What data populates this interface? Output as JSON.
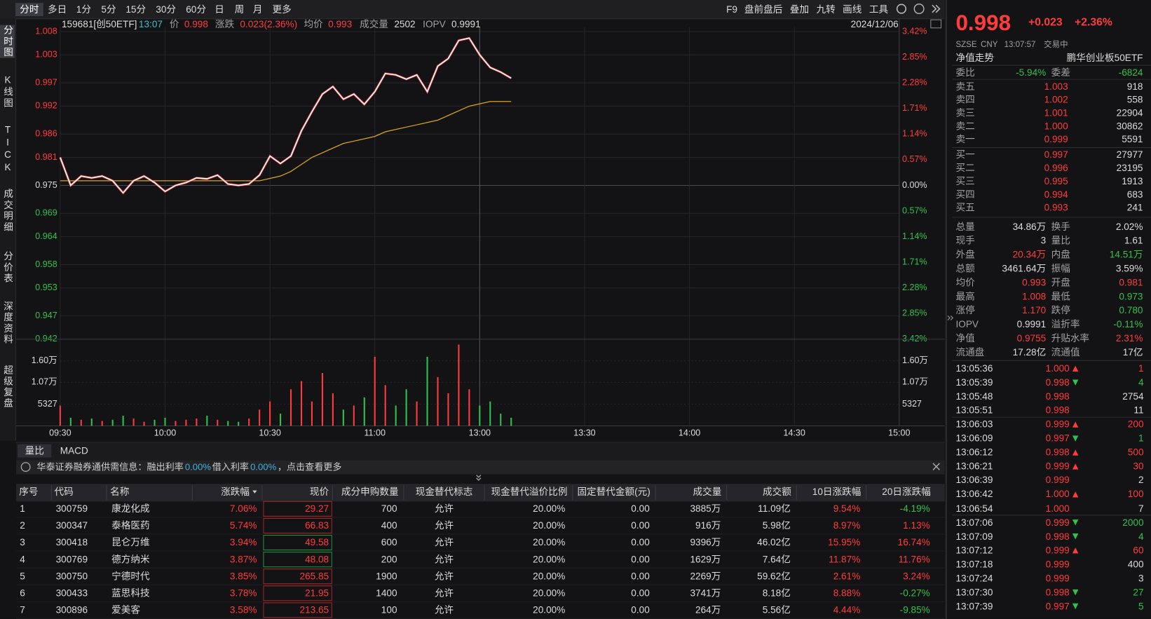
{
  "toolbar": {
    "tabs": [
      "分时",
      "多日",
      "1分",
      "5分",
      "15分",
      "30分",
      "60分",
      "日",
      "周",
      "月",
      "更多"
    ],
    "tools": [
      "F9",
      "盘前盘后",
      "叠加",
      "九转",
      "画线",
      "工具"
    ]
  },
  "side_tabs": [
    "分时图",
    "K线图",
    "TICK",
    "成交明细",
    "分价表",
    "深度资料",
    "超级复盘"
  ],
  "chart_data": {
    "type": "line",
    "info": [
      "159681[创50ETF]",
      "13:07",
      "价",
      "0.998",
      "涨跌",
      "0.023(2.36%)",
      "均价",
      "0.993",
      "成交量",
      "2502",
      "IOPV",
      "0.9991"
    ],
    "date": "2024/12/06",
    "xticks": [
      "09:30",
      "10:00",
      "10:30",
      "11:00",
      "13:00",
      "13:30",
      "14:00",
      "14:30",
      "15:00"
    ],
    "ylim": [
      0.942,
      1.008
    ],
    "yticks": [
      1.008,
      1.003,
      0.997,
      0.992,
      0.986,
      0.981,
      0.975,
      0.969,
      0.964,
      0.958,
      0.953,
      0.947,
      0.942
    ],
    "y2lim": [
      -3.42,
      3.42
    ],
    "y2ticks": [
      {
        "value": 3.42,
        "label": "3.42%"
      },
      {
        "value": 2.85,
        "label": "2.85%"
      },
      {
        "value": 2.28,
        "label": "2.28%"
      },
      {
        "value": 1.71,
        "label": "1.71%"
      },
      {
        "value": 1.14,
        "label": "1.14%"
      },
      {
        "value": 0.57,
        "label": "0.57%"
      },
      {
        "value": 0,
        "label": "0.00%"
      },
      {
        "value": -0.57,
        "label": "0.57%"
      },
      {
        "value": -1.14,
        "label": "1.14%"
      },
      {
        "value": -1.71,
        "label": "1.71%"
      },
      {
        "value": -2.28,
        "label": "2.28%"
      },
      {
        "value": -2.85,
        "label": "2.85%"
      },
      {
        "value": -3.42,
        "label": "3.42%"
      }
    ],
    "series": [
      {
        "color": "#ffffff",
        "values": [
          0.981,
          0.975,
          0.977,
          0.9766,
          0.977,
          0.976,
          0.9734,
          0.976,
          0.977,
          0.9756,
          0.9737,
          0.975,
          0.9756,
          0.9766,
          0.9764,
          0.9772,
          0.9753,
          0.975,
          0.9753,
          0.9772,
          0.9813,
          0.9797,
          0.9813,
          0.9867,
          0.9908,
          0.9946,
          0.9962,
          0.9935,
          0.9946,
          0.9924,
          0.9951,
          0.999,
          0.9987,
          0.9978,
          0.9987,
          0.9951,
          1.0006,
          1.0022,
          1.0061,
          1.0066,
          1.003,
          1.0003,
          0.9993,
          0.998
        ]
      },
      {
        "color": "#d9a520",
        "values": [
          0.976,
          0.976,
          0.976,
          0.976,
          0.976,
          0.976,
          0.976,
          0.976,
          0.976,
          0.976,
          0.976,
          0.976,
          0.976,
          0.976,
          0.976,
          0.976,
          0.976,
          0.976,
          0.976,
          0.976,
          0.9765,
          0.977,
          0.978,
          0.9795,
          0.981,
          0.982,
          0.983,
          0.984,
          0.9845,
          0.985,
          0.9855,
          0.9865,
          0.987,
          0.9875,
          0.988,
          0.9885,
          0.989,
          0.99,
          0.991,
          0.992,
          0.9925,
          0.993,
          0.993,
          0.993
        ]
      }
    ],
    "volume": {
      "ylim": [
        0,
        21308
      ],
      "yticks": [
        {
          "value": 16000,
          "label": "1.60万"
        },
        {
          "value": 10700,
          "label": "1.07万"
        },
        5327
      ],
      "values": [
        5000,
        2000,
        1500,
        1800,
        1200,
        1500,
        2500,
        1800,
        1000,
        1500,
        2000,
        1200,
        1500,
        1800,
        2500,
        1500,
        1200,
        1000,
        1800,
        4000,
        6000,
        3000,
        9000,
        11000,
        6000,
        13000,
        8000,
        4000,
        5000,
        7000,
        17000,
        10000,
        5000,
        9000,
        6000,
        17000,
        12000,
        8000,
        20000,
        9000,
        5000,
        6000,
        3000,
        2000
      ]
    },
    "up_color": "#ff3b3b",
    "down_color": "#2fc24b"
  },
  "tabs": [
    "量比",
    "MACD"
  ],
  "notice": [
    "华泰证券融券通供需信息：融出利率",
    "0.00%",
    "借入利率",
    "0.00%",
    "，点击查看更多"
  ],
  "table": {
    "headers": [
      "序号",
      "代码",
      "名称",
      "涨跌幅",
      "现价",
      "成分申购数量",
      "现金替代标志",
      "现金替代溢价比例",
      "固定替代金额(元)",
      "成交量",
      "成交额",
      "10日涨跌幅",
      "20日涨跌幅"
    ],
    "rows": [
      [
        "1",
        "300759",
        "康龙化成",
        "7.06%",
        "29.27",
        "700",
        "允许",
        "20.00%",
        "0.00",
        "3885万",
        "11.09亿",
        "9.54%",
        "-4.19%"
      ],
      [
        "2",
        "300347",
        "泰格医药",
        "5.74%",
        "66.83",
        "400",
        "允许",
        "20.00%",
        "0.00",
        "916万",
        "5.98亿",
        "8.97%",
        "1.13%"
      ],
      [
        "3",
        "300418",
        "昆仑万维",
        "3.94%",
        "49.58",
        "600",
        "允许",
        "20.00%",
        "0.00",
        "9396万",
        "46.02亿",
        "15.95%",
        "16.74%"
      ],
      [
        "4",
        "300769",
        "德方纳米",
        "3.87%",
        "48.08",
        "200",
        "允许",
        "20.00%",
        "0.00",
        "1629万",
        "7.64亿",
        "11.87%",
        "11.76%"
      ],
      [
        "5",
        "300750",
        "宁德时代",
        "3.85%",
        "265.85",
        "1900",
        "允许",
        "20.00%",
        "0.00",
        "2269万",
        "59.62亿",
        "2.61%",
        "3.24%"
      ],
      [
        "6",
        "300433",
        "蓝思科技",
        "3.78%",
        "21.95",
        "1400",
        "允许",
        "20.00%",
        "0.00",
        "3741万",
        "8.18亿",
        "8.88%",
        "-0.27%"
      ],
      [
        "7",
        "300896",
        "爱美客",
        "3.58%",
        "213.65",
        "100",
        "允许",
        "20.00%",
        "0.00",
        "264万",
        "5.56亿",
        "4.44%",
        "-9.85%"
      ]
    ]
  },
  "quote": {
    "price": "0.998",
    "change": "+0.023",
    "pct": "+2.36%",
    "meta": [
      "SZSE",
      "CNY",
      "13:07:57",
      "交易中"
    ],
    "nav_title": "净值走势",
    "fund_name": "鹏华创业板50ETF",
    "weibi": [
      "委比",
      "-5.94%",
      "委差",
      "-6824"
    ],
    "asks": [
      [
        "卖五",
        "1.003",
        "918"
      ],
      [
        "卖四",
        "1.002",
        "558"
      ],
      [
        "卖三",
        "1.001",
        "22904"
      ],
      [
        "卖二",
        "1.000",
        "30862"
      ],
      [
        "卖一",
        "0.999",
        "5591"
      ]
    ],
    "bids": [
      [
        "买一",
        "0.997",
        "27977"
      ],
      [
        "买二",
        "0.996",
        "23195"
      ],
      [
        "买三",
        "0.995",
        "1913"
      ],
      [
        "买四",
        "0.994",
        "683"
      ],
      [
        "买五",
        "0.993",
        "241"
      ]
    ],
    "stats": [
      [
        "总量",
        "34.86万",
        "换手",
        "2.02%"
      ],
      [
        "现手",
        "3",
        "量比",
        "1.61"
      ],
      [
        "外盘",
        "20.34万",
        "内盘",
        "14.51万"
      ],
      [
        "总额",
        "3461.64万",
        "振幅",
        "3.59%"
      ],
      [
        "均价",
        "0.993",
        "开盘",
        "0.981"
      ],
      [
        "最高",
        "1.008",
        "最低",
        "0.973"
      ],
      [
        "涨停",
        "1.170",
        "跌停",
        "0.780"
      ],
      [
        "IOPV",
        "0.9991",
        "溢折率",
        "-0.11%"
      ],
      [
        "净值",
        "0.9755",
        "升贴水率",
        "2.31%"
      ],
      [
        "流通盘",
        "17.28亿",
        "流通值",
        "17亿"
      ]
    ],
    "trades": [
      {
        "time": "13:05:36",
        "price": "1.000",
        "dir": "up",
        "vol": "1"
      },
      {
        "time": "13:05:39",
        "price": "0.998",
        "dir": "down",
        "vol": "4"
      },
      {
        "time": "13:05:48",
        "price": "0.998",
        "dir": null,
        "vol": "2754"
      },
      {
        "time": "13:05:51",
        "price": "0.998",
        "dir": null,
        "vol": "11"
      },
      {
        "time": "13:06:03",
        "price": "0.999",
        "dir": "up",
        "vol": "200"
      },
      {
        "time": "13:06:09",
        "price": "0.997",
        "dir": "down",
        "vol": "1"
      },
      {
        "time": "13:06:12",
        "price": "0.998",
        "dir": "up",
        "vol": "500"
      },
      {
        "time": "13:06:21",
        "price": "0.999",
        "dir": "up",
        "vol": "30"
      },
      {
        "time": "13:06:39",
        "price": "0.999",
        "dir": null,
        "vol": "2"
      },
      {
        "time": "13:06:42",
        "price": "1.000",
        "dir": "up",
        "vol": "100"
      },
      {
        "time": "13:06:54",
        "price": "1.000",
        "dir": null,
        "vol": "7"
      },
      {
        "time": "13:07:06",
        "price": "0.999",
        "dir": "down",
        "vol": "2000"
      },
      {
        "time": "13:07:09",
        "price": "0.998",
        "dir": "down",
        "vol": "4"
      },
      {
        "time": "13:07:12",
        "price": "0.999",
        "dir": "up",
        "vol": "60"
      },
      {
        "time": "13:07:18",
        "price": "0.999",
        "dir": null,
        "vol": "400"
      },
      {
        "time": "13:07:24",
        "price": "0.999",
        "dir": null,
        "vol": "3"
      },
      {
        "time": "13:07:30",
        "price": "0.998",
        "dir": "down",
        "vol": "27"
      },
      {
        "time": "13:07:39",
        "price": "0.997",
        "dir": "down",
        "vol": "5"
      }
    ]
  }
}
